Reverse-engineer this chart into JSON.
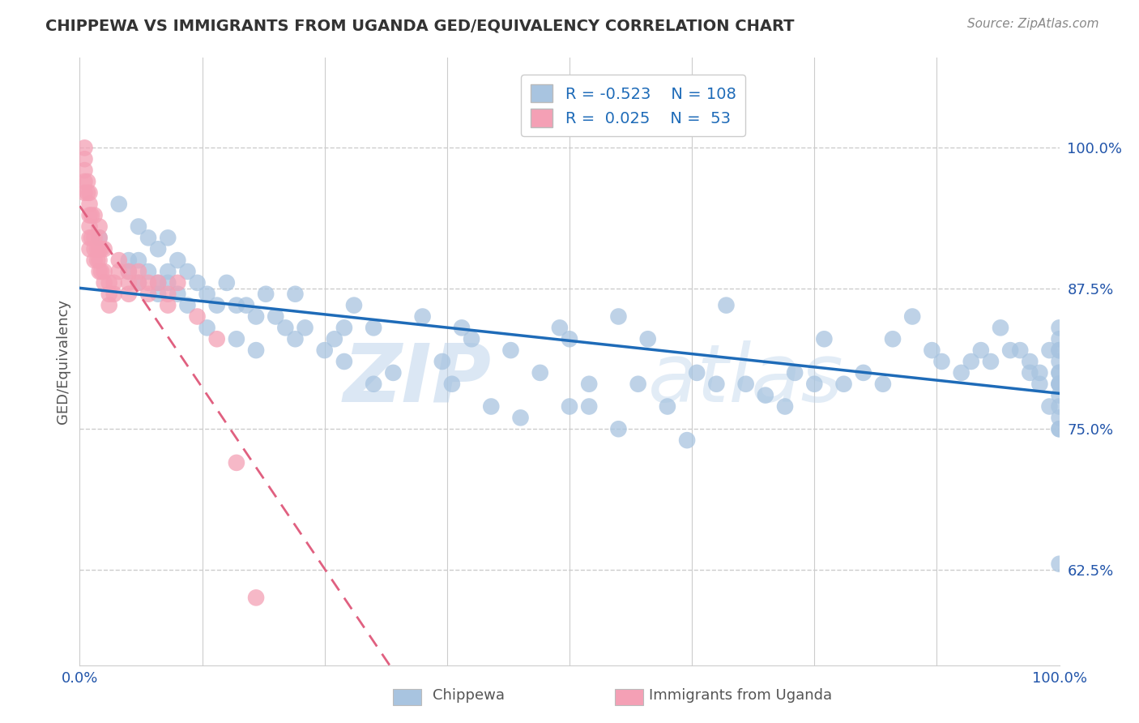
{
  "title": "CHIPPEWA VS IMMIGRANTS FROM UGANDA GED/EQUIVALENCY CORRELATION CHART",
  "source": "Source: ZipAtlas.com",
  "ylabel": "GED/Equivalency",
  "y_ticks": [
    0.625,
    0.75,
    0.875,
    1.0
  ],
  "y_tick_labels": [
    "62.5%",
    "75.0%",
    "87.5%",
    "100.0%"
  ],
  "chippewa_R": "-0.523",
  "chippewa_N": "108",
  "uganda_R": "0.025",
  "uganda_N": "53",
  "chippewa_color": "#a8c4e0",
  "uganda_color": "#f4a0b5",
  "chippewa_line_color": "#1e6bb8",
  "uganda_line_color": "#e06080",
  "legend_label1": "Chippewa",
  "legend_label2": "Immigrants from Uganda",
  "watermark_zip": "ZIP",
  "watermark_atlas": "atlas",
  "xlim": [
    0.0,
    1.0
  ],
  "ylim": [
    0.54,
    1.08
  ],
  "chippewa_x": [
    0.02,
    0.04,
    0.05,
    0.05,
    0.06,
    0.06,
    0.06,
    0.07,
    0.07,
    0.08,
    0.08,
    0.08,
    0.09,
    0.09,
    0.09,
    0.1,
    0.1,
    0.11,
    0.11,
    0.12,
    0.13,
    0.13,
    0.14,
    0.15,
    0.16,
    0.16,
    0.17,
    0.18,
    0.18,
    0.19,
    0.2,
    0.21,
    0.22,
    0.22,
    0.23,
    0.25,
    0.26,
    0.27,
    0.27,
    0.28,
    0.3,
    0.3,
    0.32,
    0.35,
    0.37,
    0.38,
    0.39,
    0.4,
    0.42,
    0.44,
    0.45,
    0.47,
    0.49,
    0.5,
    0.5,
    0.52,
    0.52,
    0.55,
    0.55,
    0.57,
    0.58,
    0.6,
    0.62,
    0.63,
    0.65,
    0.66,
    0.68,
    0.7,
    0.72,
    0.73,
    0.75,
    0.76,
    0.78,
    0.8,
    0.82,
    0.83,
    0.85,
    0.87,
    0.88,
    0.9,
    0.91,
    0.92,
    0.93,
    0.94,
    0.95,
    0.96,
    0.97,
    0.97,
    0.98,
    0.98,
    0.99,
    0.99,
    1.0,
    1.0,
    1.0,
    1.0,
    1.0,
    1.0,
    1.0,
    1.0,
    1.0,
    1.0,
    1.0,
    1.0,
    1.0,
    1.0,
    1.0,
    1.0
  ],
  "chippewa_y": [
    0.92,
    0.95,
    0.9,
    0.89,
    0.93,
    0.9,
    0.88,
    0.92,
    0.89,
    0.91,
    0.88,
    0.87,
    0.92,
    0.89,
    0.88,
    0.9,
    0.87,
    0.89,
    0.86,
    0.88,
    0.87,
    0.84,
    0.86,
    0.88,
    0.86,
    0.83,
    0.86,
    0.85,
    0.82,
    0.87,
    0.85,
    0.84,
    0.83,
    0.87,
    0.84,
    0.82,
    0.83,
    0.84,
    0.81,
    0.86,
    0.79,
    0.84,
    0.8,
    0.85,
    0.81,
    0.79,
    0.84,
    0.83,
    0.77,
    0.82,
    0.76,
    0.8,
    0.84,
    0.77,
    0.83,
    0.79,
    0.77,
    0.85,
    0.75,
    0.79,
    0.83,
    0.77,
    0.74,
    0.8,
    0.79,
    0.86,
    0.79,
    0.78,
    0.77,
    0.8,
    0.79,
    0.83,
    0.79,
    0.8,
    0.79,
    0.83,
    0.85,
    0.82,
    0.81,
    0.8,
    0.81,
    0.82,
    0.81,
    0.84,
    0.82,
    0.82,
    0.81,
    0.8,
    0.79,
    0.8,
    0.82,
    0.77,
    0.8,
    0.82,
    0.79,
    0.81,
    0.77,
    0.79,
    0.75,
    0.82,
    0.8,
    0.84,
    0.83,
    0.76,
    0.79,
    0.78,
    0.75,
    0.63
  ],
  "uganda_x": [
    0.005,
    0.005,
    0.005,
    0.005,
    0.005,
    0.008,
    0.008,
    0.01,
    0.01,
    0.01,
    0.01,
    0.01,
    0.01,
    0.012,
    0.012,
    0.015,
    0.015,
    0.015,
    0.015,
    0.018,
    0.018,
    0.02,
    0.02,
    0.02,
    0.02,
    0.02,
    0.022,
    0.022,
    0.025,
    0.025,
    0.025,
    0.03,
    0.03,
    0.03,
    0.035,
    0.035,
    0.04,
    0.04,
    0.05,
    0.05,
    0.05,
    0.06,
    0.06,
    0.07,
    0.07,
    0.08,
    0.09,
    0.09,
    0.1,
    0.12,
    0.14,
    0.16,
    0.18
  ],
  "uganda_y": [
    1.0,
    0.99,
    0.98,
    0.97,
    0.96,
    0.97,
    0.96,
    0.96,
    0.95,
    0.94,
    0.93,
    0.92,
    0.91,
    0.94,
    0.92,
    0.94,
    0.92,
    0.91,
    0.9,
    0.91,
    0.9,
    0.93,
    0.92,
    0.91,
    0.9,
    0.89,
    0.91,
    0.89,
    0.91,
    0.89,
    0.88,
    0.88,
    0.87,
    0.86,
    0.88,
    0.87,
    0.9,
    0.89,
    0.89,
    0.88,
    0.87,
    0.89,
    0.88,
    0.88,
    0.87,
    0.88,
    0.87,
    0.86,
    0.88,
    0.85,
    0.83,
    0.72,
    0.6
  ]
}
